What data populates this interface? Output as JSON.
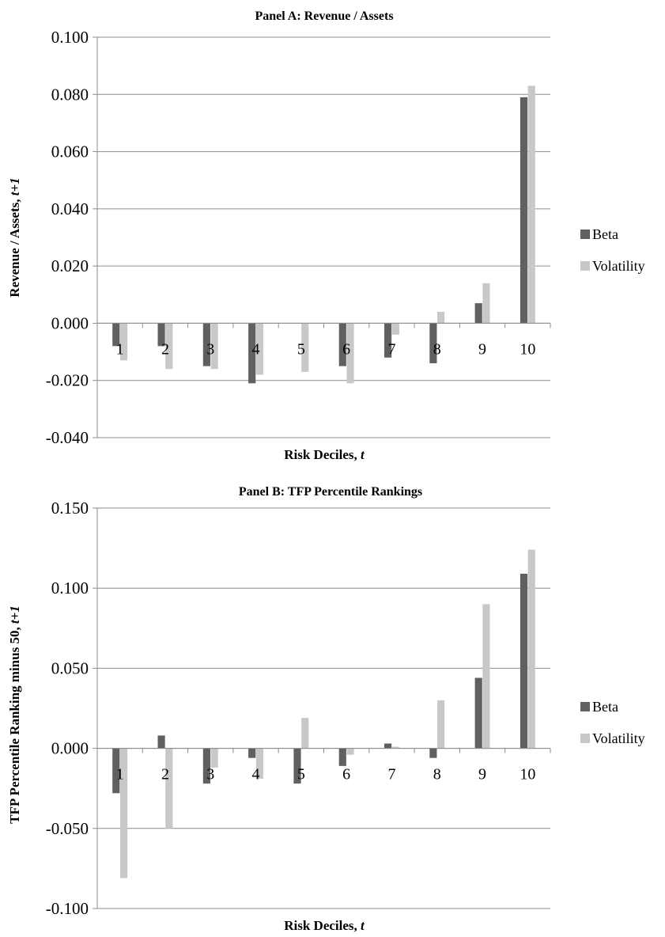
{
  "colors": {
    "beta": "#606060",
    "volatility": "#c8c8c8"
  },
  "chart_data": [
    {
      "type": "bar",
      "title": "Panel A: Revenue / Assets",
      "ylabel_main": "Revenue / Assets, ",
      "ylabel_italic": "t+1",
      "xlabel_main": "Risk Deciles, ",
      "xlabel_italic": "t",
      "categories": [
        "1",
        "2",
        "3",
        "4",
        "5",
        "6",
        "7",
        "8",
        "9",
        "10"
      ],
      "ylim": [
        -0.04,
        0.1
      ],
      "yticks": [
        -0.04,
        -0.02,
        0.0,
        0.02,
        0.04,
        0.06,
        0.08,
        0.1
      ],
      "ytick_labels": [
        "-0.040",
        "-0.020",
        "0.000",
        "0.020",
        "0.040",
        "0.060",
        "0.080",
        "0.100"
      ],
      "series": [
        {
          "name": "Beta",
          "values": [
            -0.008,
            -0.008,
            -0.015,
            -0.021,
            0.0,
            -0.015,
            -0.012,
            -0.014,
            0.007,
            0.079
          ]
        },
        {
          "name": "Volatility",
          "values": [
            -0.013,
            -0.016,
            -0.016,
            -0.018,
            -0.017,
            -0.021,
            -0.004,
            0.004,
            0.014,
            0.083
          ]
        }
      ],
      "legend_position": "right",
      "grid": true
    },
    {
      "type": "bar",
      "title": "Panel B: TFP Percentile Rankings",
      "ylabel_main": "TFP Percentile Ranking minus 50, ",
      "ylabel_italic": "t+1",
      "xlabel_main": "Risk Deciles, ",
      "xlabel_italic": "t",
      "categories": [
        "1",
        "2",
        "3",
        "4",
        "5",
        "6",
        "7",
        "8",
        "9",
        "10"
      ],
      "ylim": [
        -0.1,
        0.15
      ],
      "yticks": [
        -0.1,
        -0.05,
        0.0,
        0.05,
        0.1,
        0.15
      ],
      "ytick_labels": [
        "-0.100",
        "-0.050",
        "0.000",
        "0.050",
        "0.100",
        "0.150"
      ],
      "series": [
        {
          "name": "Beta",
          "values": [
            -0.028,
            0.008,
            -0.022,
            -0.006,
            -0.022,
            -0.011,
            0.003,
            -0.006,
            0.044,
            0.109
          ]
        },
        {
          "name": "Volatility",
          "values": [
            -0.081,
            -0.05,
            -0.012,
            -0.019,
            0.019,
            -0.004,
            0.001,
            0.03,
            0.09,
            0.124
          ]
        }
      ],
      "legend_position": "right",
      "grid": true
    }
  ]
}
